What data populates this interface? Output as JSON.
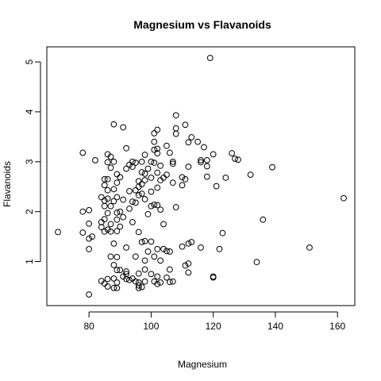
{
  "chart_data": {
    "type": "scatter",
    "title": "Magnesium vs Flavanoids",
    "xlabel": "Magnesium",
    "ylabel": "Flavanoids",
    "xlim": [
      70,
      162
    ],
    "ylim": [
      0.34,
      5.08
    ],
    "xticks": [
      80,
      100,
      120,
      140,
      160
    ],
    "yticks": [
      1,
      2,
      3,
      4,
      5
    ],
    "grid": false,
    "legend": "none",
    "marker": "open-circle",
    "point_color": "#000000",
    "points": [
      [
        70,
        1.59
      ],
      [
        78,
        3.18
      ],
      [
        78,
        2.0
      ],
      [
        78,
        1.58
      ],
      [
        80,
        2.03
      ],
      [
        80,
        1.76
      ],
      [
        80,
        1.46
      ],
      [
        80,
        1.25
      ],
      [
        80,
        0.34
      ],
      [
        81,
        1.5
      ],
      [
        82,
        3.03
      ],
      [
        84,
        2.29
      ],
      [
        84,
        1.79
      ],
      [
        84,
        1.69
      ],
      [
        84,
        0.61
      ],
      [
        85,
        2.65
      ],
      [
        85,
        2.53
      ],
      [
        85,
        2.22
      ],
      [
        85,
        2.11
      ],
      [
        85,
        1.85
      ],
      [
        85,
        1.6
      ],
      [
        85,
        0.56
      ],
      [
        86,
        3.15
      ],
      [
        86,
        2.99
      ],
      [
        86,
        2.65
      ],
      [
        86,
        2.43
      ],
      [
        86,
        2.26
      ],
      [
        86,
        1.97
      ],
      [
        86,
        1.64
      ],
      [
        86,
        0.65
      ],
      [
        86,
        0.5
      ],
      [
        87,
        3.1
      ],
      [
        87,
        2.88
      ],
      [
        87,
        2.11
      ],
      [
        87,
        1.75
      ],
      [
        87,
        1.6
      ],
      [
        87,
        1.1
      ],
      [
        88,
        3.75
      ],
      [
        88,
        3.0
      ],
      [
        88,
        2.45
      ],
      [
        88,
        2.21
      ],
      [
        88,
        1.36
      ],
      [
        88,
        0.93
      ],
      [
        88,
        0.66
      ],
      [
        88,
        0.47
      ],
      [
        89,
        2.75
      ],
      [
        89,
        2.58
      ],
      [
        89,
        2.29
      ],
      [
        89,
        1.98
      ],
      [
        89,
        1.84
      ],
      [
        89,
        1.61
      ],
      [
        89,
        1.09
      ],
      [
        89,
        0.83
      ],
      [
        89,
        0.58
      ],
      [
        89,
        0.47
      ],
      [
        90,
        2.69
      ],
      [
        90,
        2.0
      ],
      [
        90,
        1.7
      ],
      [
        90,
        0.83
      ],
      [
        91,
        3.69
      ],
      [
        91,
        2.24
      ],
      [
        91,
        1.89
      ],
      [
        91,
        0.7
      ],
      [
        92,
        3.27
      ],
      [
        92,
        2.86
      ],
      [
        92,
        1.28
      ],
      [
        92,
        0.8
      ],
      [
        92,
        0.75
      ],
      [
        92,
        0.65
      ],
      [
        93,
        2.94
      ],
      [
        93,
        2.41
      ],
      [
        93,
        2.06
      ],
      [
        93,
        0.63
      ],
      [
        94,
        3.0
      ],
      [
        94,
        2.9
      ],
      [
        94,
        2.2
      ],
      [
        94,
        1.79
      ],
      [
        94,
        0.66
      ],
      [
        95,
        2.98
      ],
      [
        95,
        2.43
      ],
      [
        95,
        2.18
      ],
      [
        95,
        1.1
      ],
      [
        95,
        0.6
      ],
      [
        96,
        2.61
      ],
      [
        96,
        2.5
      ],
      [
        96,
        2.33
      ],
      [
        96,
        1.59
      ],
      [
        96,
        0.58
      ],
      [
        96,
        0.52
      ],
      [
        96,
        0.47
      ],
      [
        96,
        0.76
      ],
      [
        97,
        3.0
      ],
      [
        97,
        2.79
      ],
      [
        97,
        2.55
      ],
      [
        97,
        2.36
      ],
      [
        97,
        1.39
      ],
      [
        97,
        0.49
      ],
      [
        98,
        3.14
      ],
      [
        98,
        2.76
      ],
      [
        98,
        2.63
      ],
      [
        98,
        2.25
      ],
      [
        98,
        1.41
      ],
      [
        98,
        1.02
      ],
      [
        98,
        0.84
      ],
      [
        98,
        0.6
      ],
      [
        99,
        2.86
      ],
      [
        99,
        1.95
      ],
      [
        99,
        1.2
      ],
      [
        100,
        3.0
      ],
      [
        100,
        2.68
      ],
      [
        100,
        2.4
      ],
      [
        100,
        2.11
      ],
      [
        100,
        1.4
      ],
      [
        100,
        0.75
      ],
      [
        101,
        3.57
      ],
      [
        101,
        3.4
      ],
      [
        101,
        3.24
      ],
      [
        101,
        2.98
      ],
      [
        101,
        2.14
      ],
      [
        101,
        1.1
      ],
      [
        101,
        0.6
      ],
      [
        102,
        3.64
      ],
      [
        102,
        3.26
      ],
      [
        102,
        3.17
      ],
      [
        102,
        2.78
      ],
      [
        102,
        2.48
      ],
      [
        102,
        2.13
      ],
      [
        102,
        1.25
      ],
      [
        102,
        0.7
      ],
      [
        102,
        0.55
      ],
      [
        103,
        2.92
      ],
      [
        103,
        2.63
      ],
      [
        103,
        2.04
      ],
      [
        103,
        1.02
      ],
      [
        103,
        0.58
      ],
      [
        104,
        2.68
      ],
      [
        104,
        1.75
      ],
      [
        104,
        1.25
      ],
      [
        105,
        3.32
      ],
      [
        105,
        2.74
      ],
      [
        105,
        1.21
      ],
      [
        105,
        0.68
      ],
      [
        106,
        3.18
      ],
      [
        106,
        1.2
      ],
      [
        106,
        0.84
      ],
      [
        106,
        0.59
      ],
      [
        107,
        3.0
      ],
      [
        107,
        2.96
      ],
      [
        107,
        2.58
      ],
      [
        107,
        0.6
      ],
      [
        108,
        3.93
      ],
      [
        108,
        3.67
      ],
      [
        108,
        3.56
      ],
      [
        108,
        2.09
      ],
      [
        110,
        2.69
      ],
      [
        110,
        2.53
      ],
      [
        110,
        1.3
      ],
      [
        111,
        3.74
      ],
      [
        111,
        2.65
      ],
      [
        111,
        0.92
      ],
      [
        112,
        3.39
      ],
      [
        112,
        2.9
      ],
      [
        112,
        1.36
      ],
      [
        112,
        0.96
      ],
      [
        112,
        0.78
      ],
      [
        113,
        3.49
      ],
      [
        113,
        1.39
      ],
      [
        115,
        3.4
      ],
      [
        116,
        3.03
      ],
      [
        116,
        2.99
      ],
      [
        116,
        1.28
      ],
      [
        117,
        3.29
      ],
      [
        118,
        3.03
      ],
      [
        118,
        2.91
      ],
      [
        118,
        2.7
      ],
      [
        119,
        5.08
      ],
      [
        120,
        3.15
      ],
      [
        120,
        0.7
      ],
      [
        120,
        0.68
      ],
      [
        121,
        2.51
      ],
      [
        122,
        1.25
      ],
      [
        123,
        1.57
      ],
      [
        124,
        2.68
      ],
      [
        126,
        3.17
      ],
      [
        127,
        3.06
      ],
      [
        128,
        3.04
      ],
      [
        132,
        2.74
      ],
      [
        134,
        0.99
      ],
      [
        136,
        1.84
      ],
      [
        139,
        2.89
      ],
      [
        151,
        1.28
      ],
      [
        162,
        2.27
      ]
    ]
  }
}
